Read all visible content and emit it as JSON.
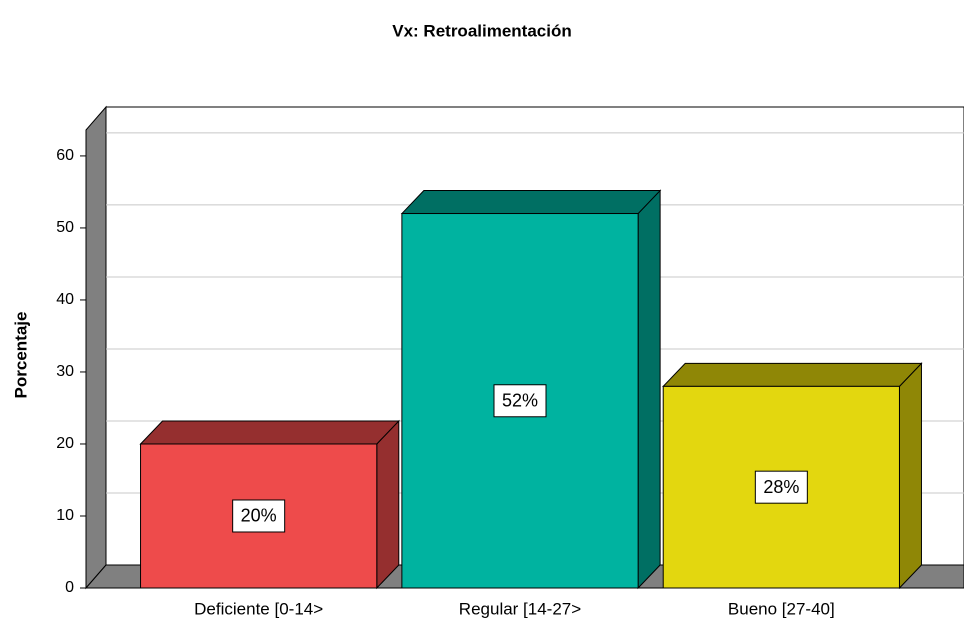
{
  "chart_data": {
    "type": "bar3d",
    "title": "Vx: Retroalimentación",
    "y_label": "Porcentaje",
    "categories": [
      "Deficiente [0-14>",
      "Regular [14-27>",
      "Bueno [27-40]"
    ],
    "values": [
      20,
      52,
      28
    ],
    "value_labels": [
      "20%",
      "52%",
      "28%"
    ],
    "colors": [
      "#ee4b4b",
      "#00b3a0",
      "#e3d70f"
    ],
    "side_colors": [
      "#952f2f",
      "#006f63",
      "#8f8706"
    ],
    "ylim": [
      0,
      63.6
    ],
    "yticks": [
      0,
      10,
      20,
      30,
      40,
      50,
      60
    ],
    "grid": true
  }
}
